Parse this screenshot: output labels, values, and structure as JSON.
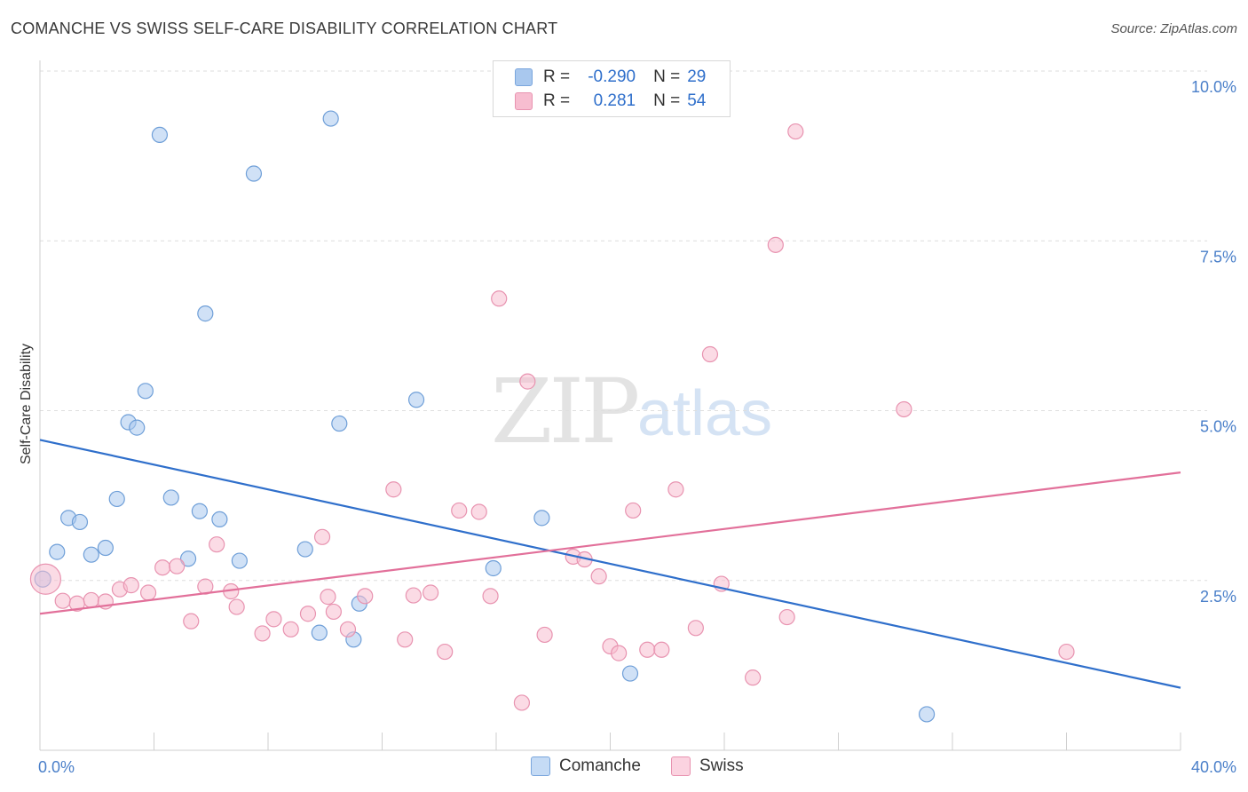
{
  "title": "COMANCHE VS SWISS SELF-CARE DISABILITY CORRELATION CHART",
  "source": "Source: ZipAtlas.com",
  "watermark": {
    "zip": "ZIP",
    "atlas": "atlas"
  },
  "legend": {
    "rows": [
      {
        "r_label": "R =",
        "r_value": "-0.290",
        "n_label": "N =",
        "n_value": "29",
        "color": "#a9c8ee",
        "border": "#7aa6dd"
      },
      {
        "r_label": "R =",
        "r_value": "0.281",
        "n_label": "N =",
        "n_value": "54",
        "color": "#f7bdd0",
        "border": "#e893b0"
      }
    ]
  },
  "bottom_legend": [
    {
      "label": "Comanche",
      "color": "#c5dbf5",
      "border": "#7aa6dd"
    },
    {
      "label": "Swiss",
      "color": "#fbd3e0",
      "border": "#e893b0"
    }
  ],
  "chart_data": {
    "type": "scatter",
    "title": "COMANCHE VS SWISS SELF-CARE DISABILITY CORRELATION CHART",
    "xlabel": "",
    "ylabel": "Self-Care Disability",
    "xlim": [
      0,
      40
    ],
    "ylim": [
      0,
      10
    ],
    "x_tick_labels": [
      {
        "value": 0,
        "label": "0.0%"
      },
      {
        "value": 40,
        "label": "40.0%"
      }
    ],
    "y_tick_labels": [
      {
        "value": 2.5,
        "label": "2.5%"
      },
      {
        "value": 5.0,
        "label": "5.0%"
      },
      {
        "value": 7.5,
        "label": "7.5%"
      },
      {
        "value": 10.0,
        "label": "10.0%"
      }
    ],
    "grid": true,
    "series": [
      {
        "name": "Comanche",
        "color": "#a9c8ee",
        "stroke": "#6f9fd8",
        "line_color": "#2f6fcb",
        "trend": [
          [
            0,
            4.57
          ],
          [
            40,
            0.92
          ]
        ],
        "points": [
          [
            0.1,
            2.52
          ],
          [
            0.6,
            2.92
          ],
          [
            1.0,
            3.42
          ],
          [
            1.4,
            3.36
          ],
          [
            1.8,
            2.88
          ],
          [
            2.3,
            2.98
          ],
          [
            2.7,
            3.7
          ],
          [
            3.1,
            4.83
          ],
          [
            3.4,
            4.75
          ],
          [
            3.7,
            5.29
          ],
          [
            4.2,
            9.06
          ],
          [
            4.6,
            3.72
          ],
          [
            5.2,
            2.82
          ],
          [
            5.6,
            3.52
          ],
          [
            5.8,
            6.43
          ],
          [
            6.3,
            3.4
          ],
          [
            7.0,
            2.79
          ],
          [
            7.5,
            8.49
          ],
          [
            9.3,
            2.96
          ],
          [
            9.8,
            1.73
          ],
          [
            10.2,
            9.3
          ],
          [
            10.5,
            4.81
          ],
          [
            11.0,
            1.63
          ],
          [
            11.2,
            2.16
          ],
          [
            13.2,
            5.16
          ],
          [
            15.9,
            2.68
          ],
          [
            17.6,
            3.42
          ],
          [
            20.7,
            1.13
          ],
          [
            31.1,
            0.53
          ]
        ]
      },
      {
        "name": "Swiss",
        "color": "#f7bdd0",
        "stroke": "#e893b0",
        "line_color": "#e2709a",
        "trend": [
          [
            0,
            2.01
          ],
          [
            40,
            4.09
          ]
        ],
        "points": [
          [
            0.2,
            2.52
          ],
          [
            0.8,
            2.2
          ],
          [
            1.3,
            2.16
          ],
          [
            1.8,
            2.21
          ],
          [
            2.3,
            2.19
          ],
          [
            2.8,
            2.37
          ],
          [
            3.2,
            2.43
          ],
          [
            3.8,
            2.32
          ],
          [
            4.3,
            2.69
          ],
          [
            4.8,
            2.71
          ],
          [
            5.3,
            1.9
          ],
          [
            5.8,
            2.41
          ],
          [
            6.2,
            3.03
          ],
          [
            6.7,
            2.34
          ],
          [
            6.9,
            2.11
          ],
          [
            7.8,
            1.72
          ],
          [
            8.2,
            1.93
          ],
          [
            8.8,
            1.78
          ],
          [
            9.4,
            2.01
          ],
          [
            9.9,
            3.14
          ],
          [
            10.1,
            2.26
          ],
          [
            10.3,
            2.04
          ],
          [
            10.8,
            1.78
          ],
          [
            11.4,
            2.27
          ],
          [
            12.4,
            3.84
          ],
          [
            12.8,
            1.63
          ],
          [
            13.1,
            2.28
          ],
          [
            13.7,
            2.32
          ],
          [
            14.2,
            1.45
          ],
          [
            14.7,
            3.53
          ],
          [
            15.4,
            3.51
          ],
          [
            15.8,
            2.27
          ],
          [
            16.1,
            6.65
          ],
          [
            16.9,
            0.7
          ],
          [
            17.1,
            5.43
          ],
          [
            17.7,
            1.7
          ],
          [
            18.7,
            2.85
          ],
          [
            19.1,
            2.81
          ],
          [
            19.6,
            2.56
          ],
          [
            20.0,
            1.53
          ],
          [
            20.3,
            1.43
          ],
          [
            20.8,
            3.53
          ],
          [
            21.3,
            1.48
          ],
          [
            21.8,
            1.48
          ],
          [
            22.3,
            3.84
          ],
          [
            23.0,
            1.8
          ],
          [
            23.5,
            5.83
          ],
          [
            23.9,
            2.45
          ],
          [
            25.0,
            1.07
          ],
          [
            25.8,
            7.44
          ],
          [
            26.2,
            1.96
          ],
          [
            26.5,
            9.11
          ],
          [
            30.3,
            5.02
          ],
          [
            36.0,
            1.45
          ]
        ]
      }
    ]
  }
}
